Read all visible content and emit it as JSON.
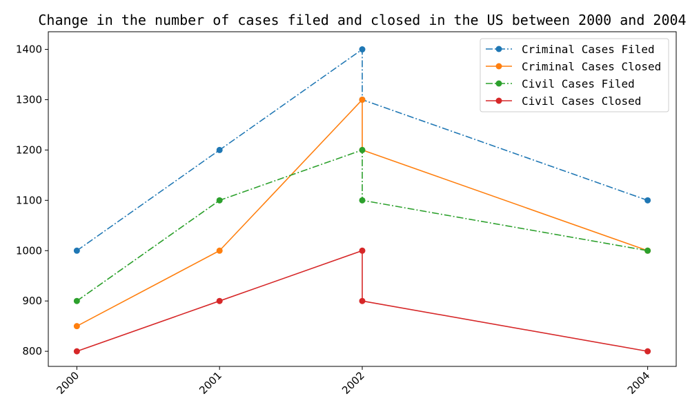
{
  "chart_data": {
    "type": "line",
    "title": "Change in the number of cases filed and closed in the US between 2000 and 2004",
    "xlabel": "",
    "ylabel": "",
    "x_ticks": [
      "2000",
      "2001",
      "2002",
      "2004"
    ],
    "y_ticks": [
      800,
      900,
      1000,
      1100,
      1200,
      1300,
      1400
    ],
    "xlim": [
      1999.8,
      2004.2
    ],
    "ylim": [
      770,
      1435
    ],
    "grid": false,
    "legend_position": "top-right",
    "series": [
      {
        "name": "Criminal Cases Filed",
        "color": "#1f77b4",
        "line_style": "dashdot",
        "x": [
          2000,
          2001,
          2002,
          2002,
          2004
        ],
        "y": [
          1000,
          1200,
          1400,
          1300,
          1100
        ]
      },
      {
        "name": "Criminal Cases Closed",
        "color": "#ff7f0e",
        "line_style": "solid",
        "x": [
          2000,
          2001,
          2002,
          2002,
          2004
        ],
        "y": [
          850,
          1000,
          1300,
          1200,
          1000
        ]
      },
      {
        "name": "Civil Cases Filed",
        "color": "#2ca02c",
        "line_style": "dashdot",
        "x": [
          2000,
          2001,
          2002,
          2002,
          2004
        ],
        "y": [
          900,
          1100,
          1200,
          1100,
          1000
        ]
      },
      {
        "name": "Civil Cases Closed",
        "color": "#d62728",
        "line_style": "solid",
        "x": [
          2000,
          2001,
          2002,
          2002,
          2004
        ],
        "y": [
          800,
          900,
          1000,
          900,
          800
        ]
      }
    ]
  }
}
